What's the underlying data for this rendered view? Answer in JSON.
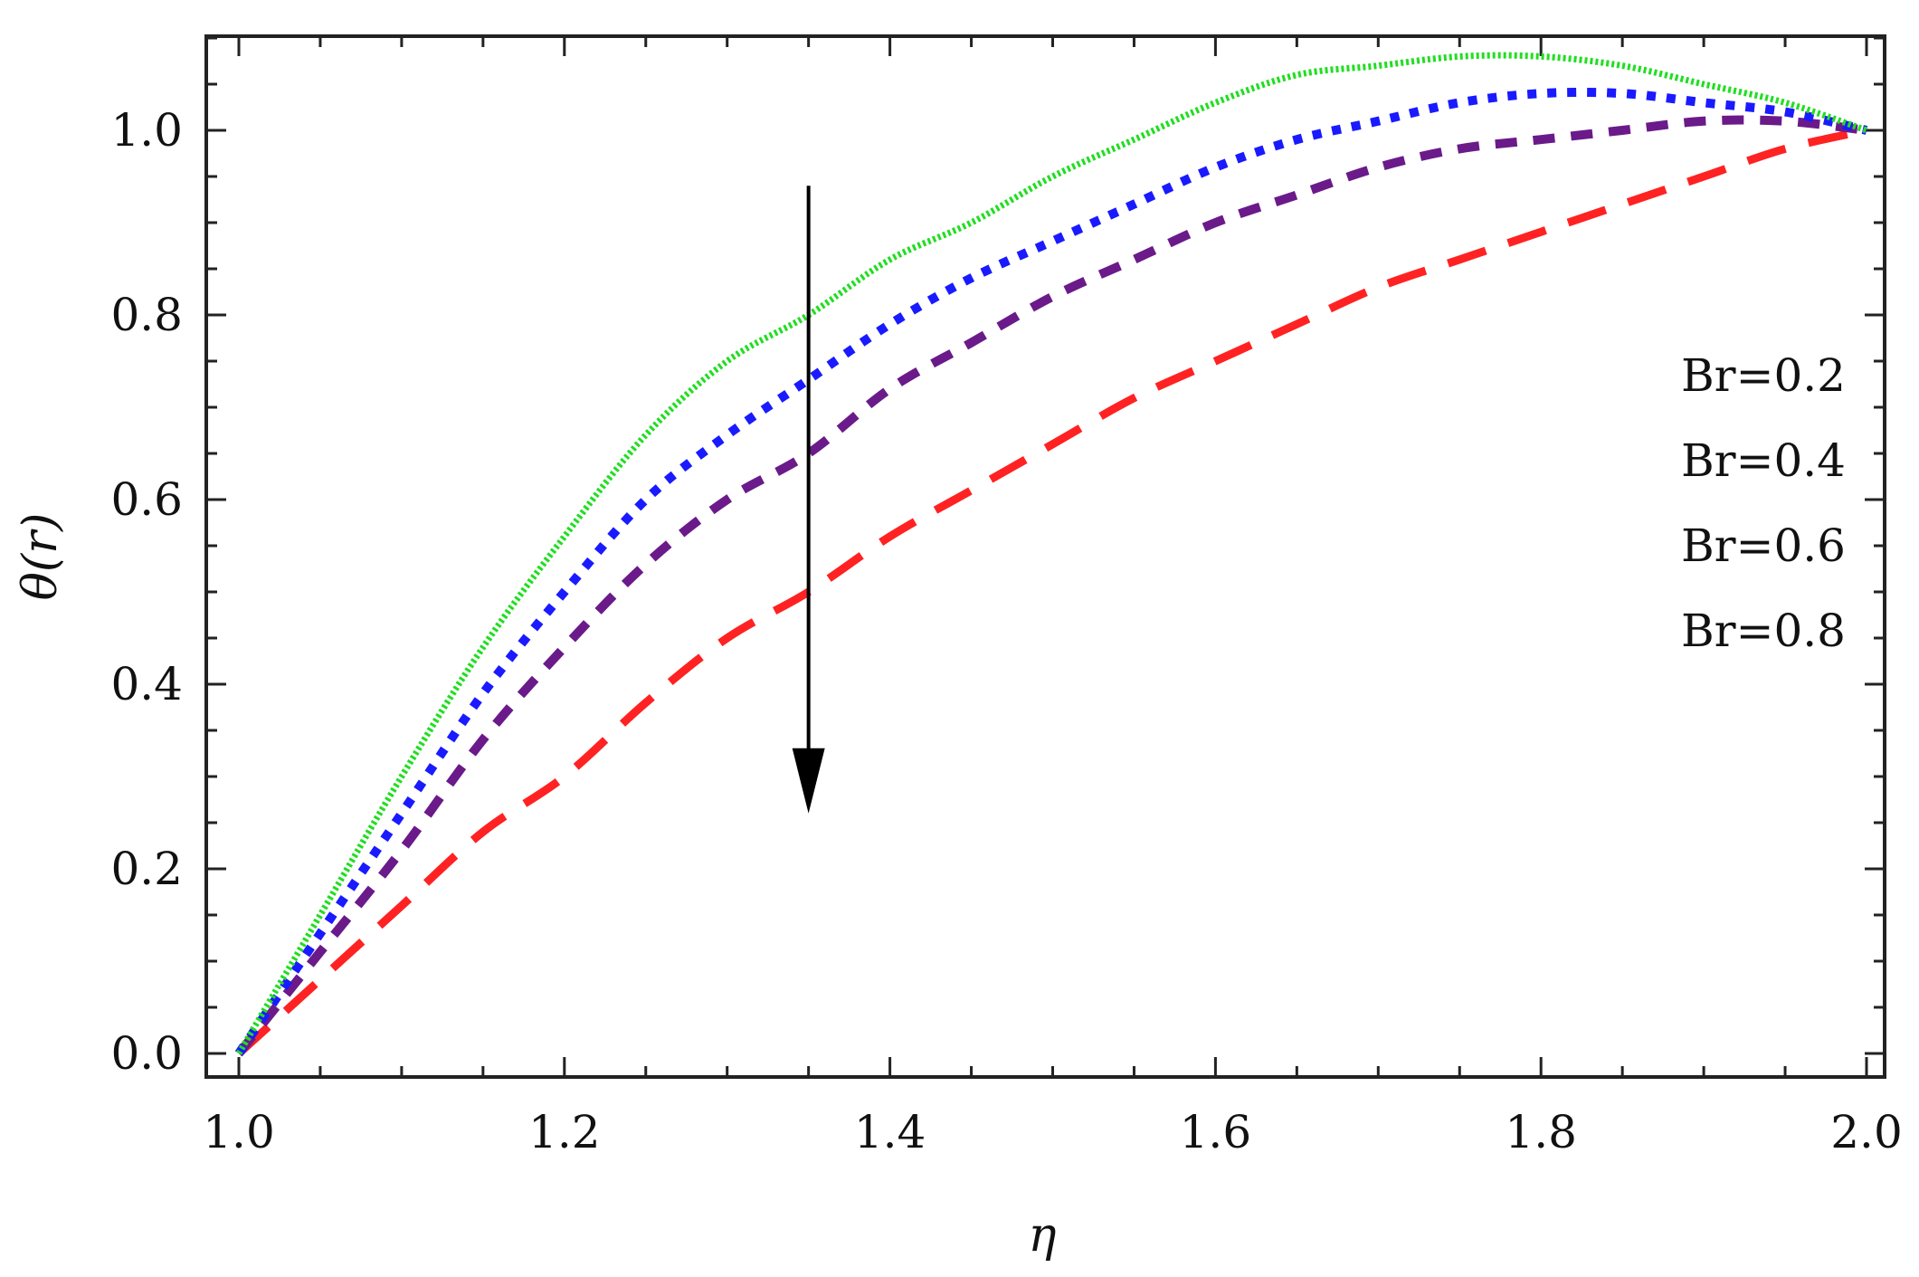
{
  "chart_data": {
    "type": "line",
    "title": "",
    "xlabel": "η",
    "ylabel": "θ(r)",
    "xlim": [
      1.0,
      2.0
    ],
    "ylim": [
      0.0,
      1.1
    ],
    "x_ticks": [
      "1.0",
      "1.2",
      "1.4",
      "1.6",
      "1.8",
      "2.0"
    ],
    "y_ticks": [
      "0.0",
      "0.2",
      "0.4",
      "0.6",
      "0.8",
      "1.0"
    ],
    "grid": false,
    "legend_position": "right",
    "legend": [
      "Br=0.2",
      "Br=0.4",
      "Br=0.6",
      "Br=0.8"
    ],
    "x": [
      1.0,
      1.05,
      1.1,
      1.15,
      1.2,
      1.25,
      1.3,
      1.35,
      1.4,
      1.45,
      1.5,
      1.55,
      1.6,
      1.65,
      1.7,
      1.75,
      1.8,
      1.85,
      1.9,
      1.95,
      2.0
    ],
    "series": [
      {
        "color": "#22dd22",
        "style": "dotted-fine",
        "values": [
          0.0,
          0.15,
          0.3,
          0.44,
          0.56,
          0.67,
          0.75,
          0.8,
          0.86,
          0.9,
          0.95,
          0.99,
          1.03,
          1.06,
          1.07,
          1.08,
          1.08,
          1.07,
          1.05,
          1.03,
          1.0
        ]
      },
      {
        "color": "#1a1aff",
        "style": "dotted",
        "values": [
          0.0,
          0.13,
          0.26,
          0.39,
          0.5,
          0.6,
          0.67,
          0.73,
          0.79,
          0.84,
          0.88,
          0.92,
          0.96,
          0.99,
          1.01,
          1.03,
          1.04,
          1.04,
          1.03,
          1.02,
          1.0
        ]
      },
      {
        "color": "#6b1a8a",
        "style": "short-dash",
        "values": [
          0.0,
          0.11,
          0.22,
          0.34,
          0.44,
          0.53,
          0.6,
          0.65,
          0.72,
          0.77,
          0.82,
          0.86,
          0.9,
          0.93,
          0.96,
          0.98,
          0.99,
          1.0,
          1.01,
          1.01,
          1.0
        ]
      },
      {
        "color": "#ff2222",
        "style": "long-dash",
        "values": [
          0.0,
          0.08,
          0.16,
          0.24,
          0.3,
          0.38,
          0.45,
          0.5,
          0.56,
          0.61,
          0.66,
          0.71,
          0.75,
          0.79,
          0.83,
          0.86,
          0.89,
          0.92,
          0.95,
          0.98,
          1.0
        ]
      }
    ],
    "annotation": {
      "type": "arrow",
      "direction": "down",
      "x": 1.35,
      "y_from": 0.94,
      "y_to": 0.26
    }
  }
}
